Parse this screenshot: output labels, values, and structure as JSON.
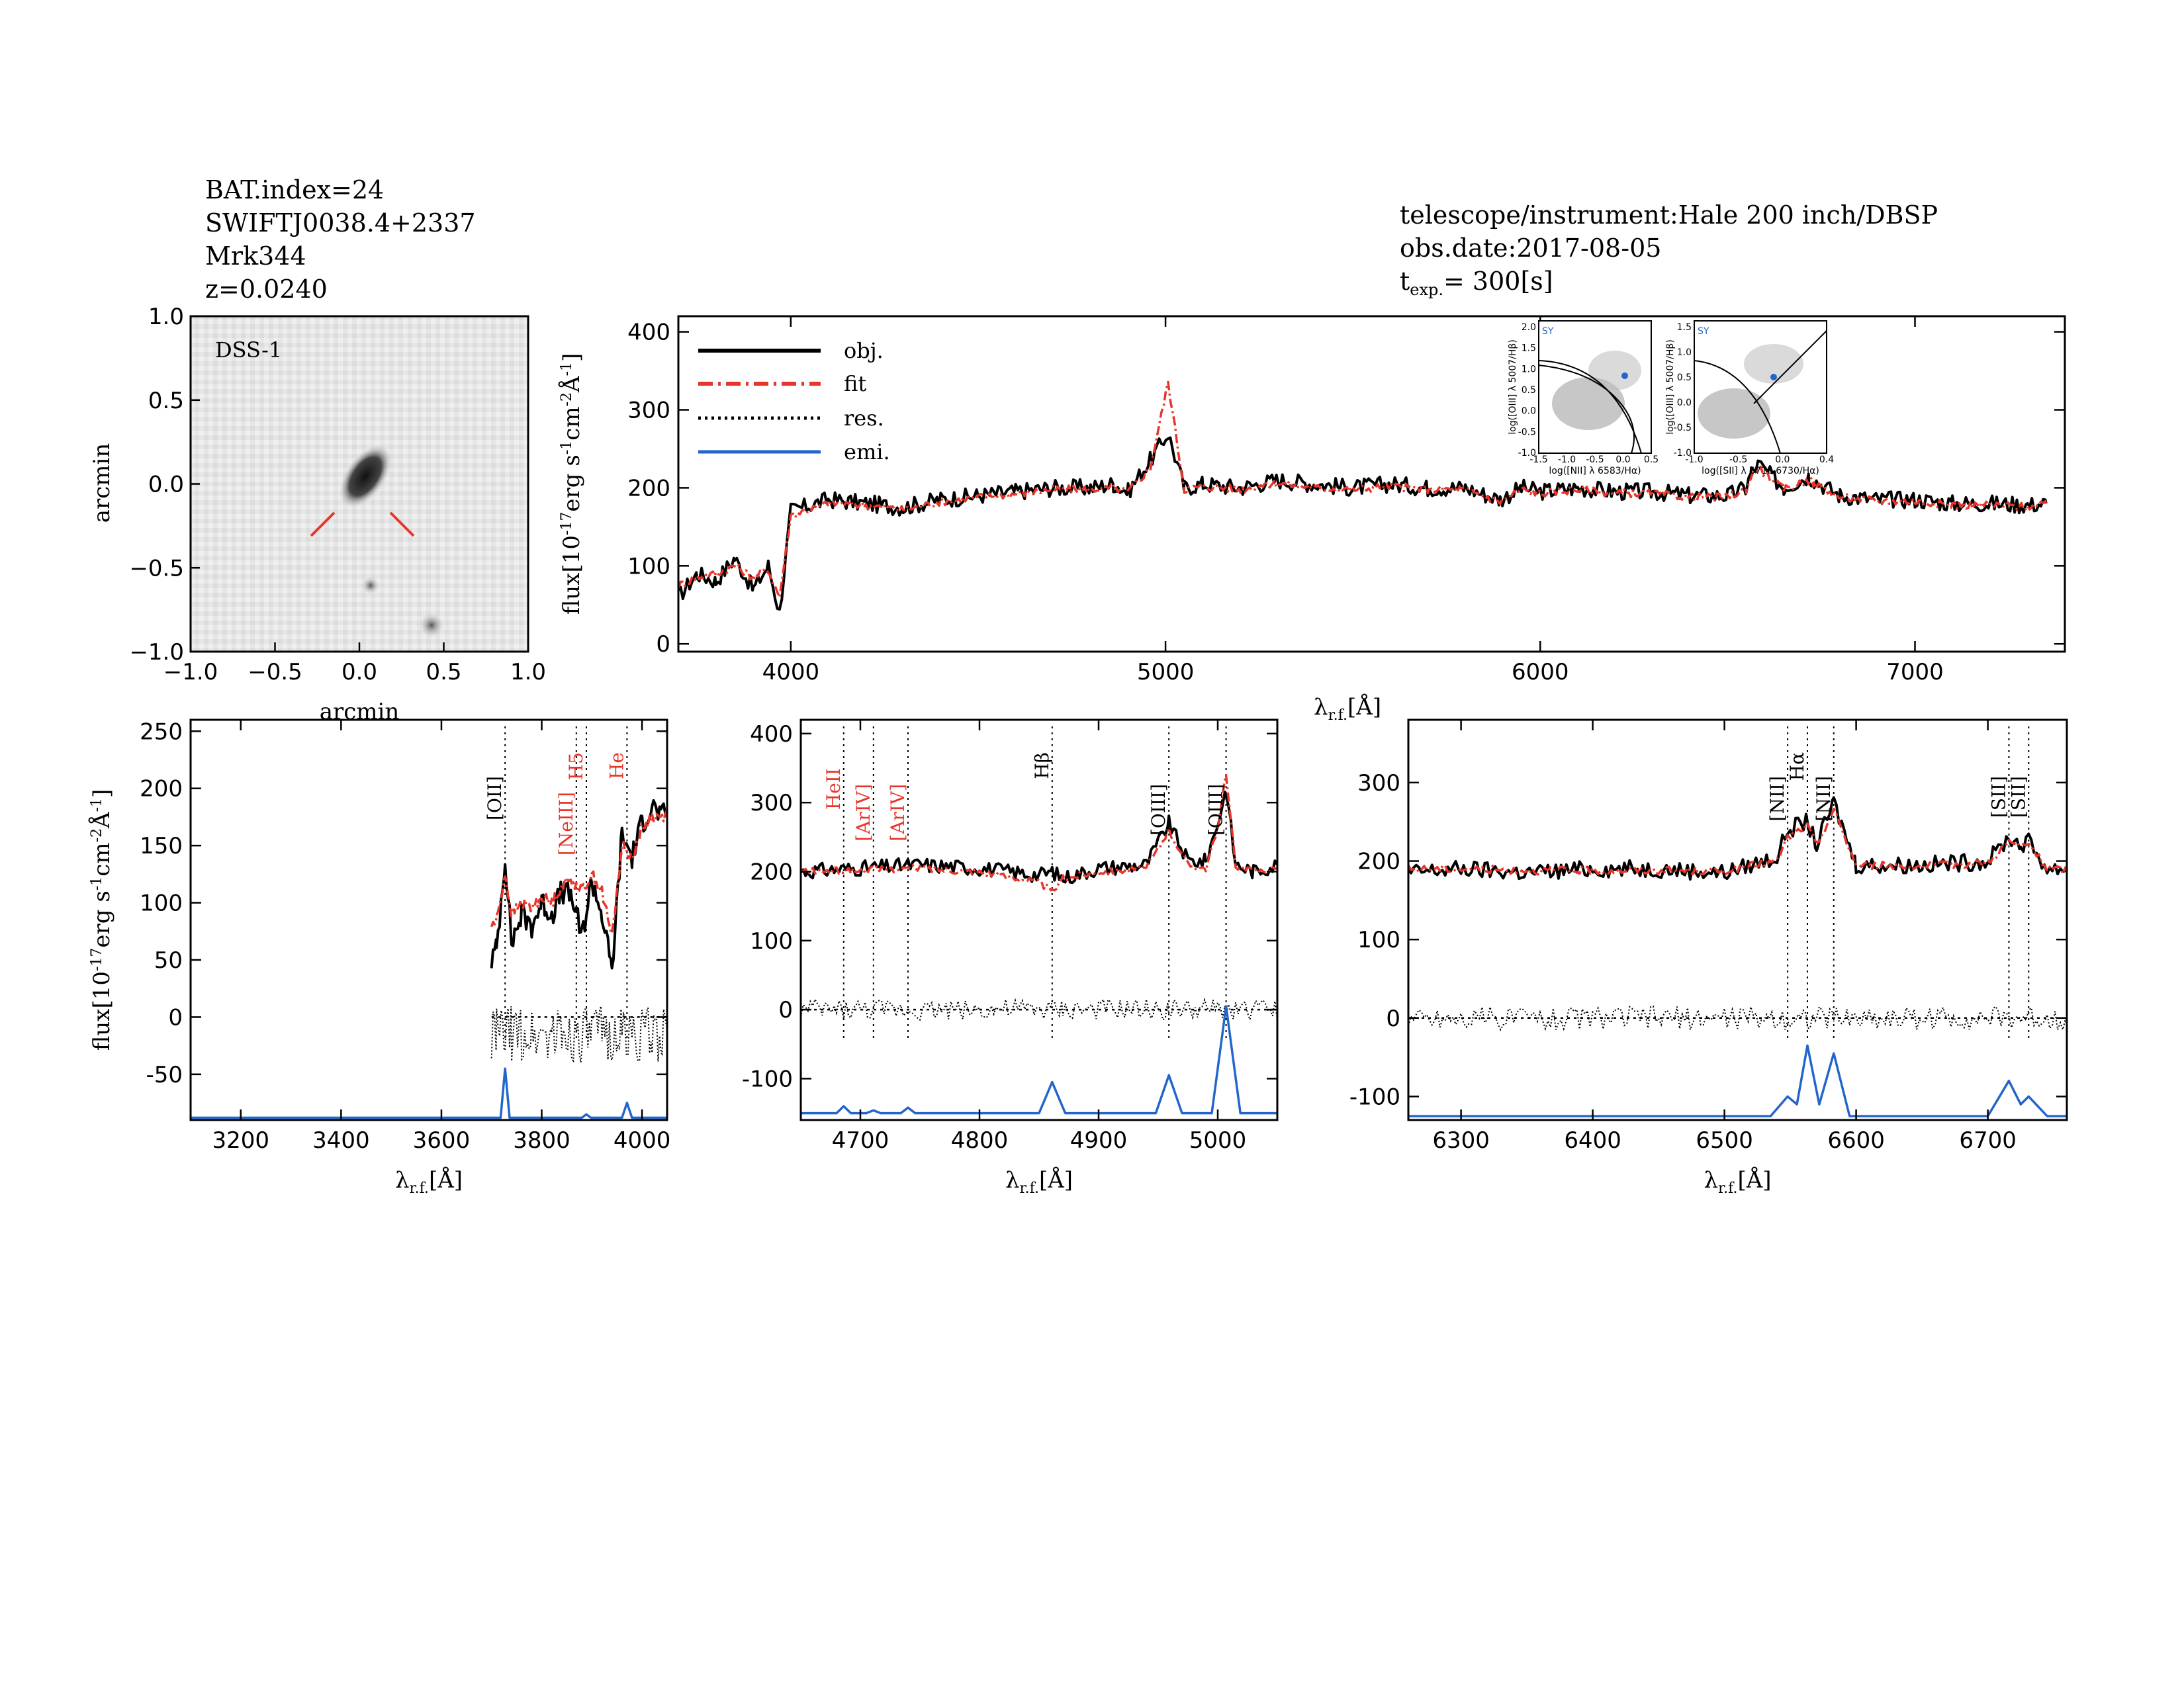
{
  "header_left": [
    "BAT.index=24",
    "SWIFTJ0038.4+2337",
    "Mrk344",
    "z=0.0240"
  ],
  "header_right": {
    "instrument": "telescope/instrument:Hale 200 inch/DBSP",
    "date": "obs.date:2017-08-05",
    "texp_main": "t",
    "texp_sub": "exp.",
    "texp_value": "= 300[s]"
  },
  "image_panel": {
    "label": "DSS-1",
    "xlabel": "arcmin",
    "ylabel": "arcmin",
    "xticks": [
      "-1.0",
      "-0.5",
      "0.0",
      "0.5",
      "1.0"
    ],
    "yticks": [
      "1.0",
      "0.5",
      "0.0",
      "-0.5",
      "-1.0"
    ]
  },
  "axis_text": {
    "flux_label": "flux[10-17erg s-1cm-2Å-1]",
    "lambda_label": "λr.f.[Å]"
  },
  "legend": [
    "obj.",
    "fit",
    "res.",
    "emi."
  ],
  "bpt1": {
    "tag": "SY",
    "xlabel": "log([NII] λ 6583/Hα)",
    "ylabel": "log([OIII] λ 5007/Hβ)",
    "xticks": [
      "-1.5",
      "-1.0",
      "-0.5",
      "0.0",
      "0.5"
    ],
    "yticks": [
      "2.0",
      "1.5",
      "1.0",
      "0.5",
      "0.0",
      "-0.5",
      "-1.0"
    ]
  },
  "bpt2": {
    "tag": "SY",
    "xlabel": "log([SII] λ 6716,6730/Hα)",
    "ylabel": "log([OIII] λ 5007/Hβ)",
    "xticks": [
      "-1.0",
      "-0.5",
      "0.0",
      "0.4"
    ],
    "yticks": [
      "1.5",
      "1.0",
      "0.5",
      "0.0",
      "-0.5",
      "-1.0"
    ]
  },
  "colors": {
    "obj": "#000000",
    "fit": "#e8352a",
    "res": "#000000",
    "emi": "#2266cc",
    "red_label": "#e8352a"
  },
  "chart_data": [
    {
      "type": "line",
      "panel": "full spectrum",
      "xlim": [
        3700,
        7400
      ],
      "ylim": [
        -10,
        420
      ],
      "xticks": [
        4000,
        5000,
        6000,
        7000
      ],
      "yticks": [
        0,
        100,
        200,
        300,
        400
      ],
      "series": [
        {
          "name": "obj.",
          "x": [
            3700,
            3750,
            3800,
            3850,
            3900,
            3940,
            3970,
            4000,
            4100,
            4200,
            4300,
            4400,
            4500,
            4600,
            4700,
            4800,
            4861,
            4900,
            4959,
            5007,
            5050,
            5100,
            5200,
            5300,
            5400,
            5500,
            5600,
            5700,
            5800,
            5893,
            5950,
            6000,
            6100,
            6200,
            6300,
            6400,
            6500,
            6550,
            6563,
            6583,
            6650,
            6717,
            6731,
            6800,
            6900,
            7000,
            7100,
            7200,
            7300,
            7350
          ],
          "y": [
            60,
            90,
            80,
            110,
            70,
            100,
            40,
            170,
            185,
            180,
            175,
            185,
            190,
            195,
            200,
            200,
            205,
            195,
            235,
            270,
            200,
            205,
            200,
            210,
            205,
            200,
            205,
            200,
            200,
            185,
            200,
            195,
            200,
            195,
            195,
            190,
            190,
            200,
            220,
            230,
            200,
            215,
            210,
            190,
            185,
            185,
            180,
            180,
            178,
            180
          ]
        },
        {
          "name": "fit",
          "x": [
            3700,
            3750,
            3800,
            3850,
            3900,
            3940,
            3970,
            4000,
            4100,
            4200,
            4300,
            4400,
            4500,
            4600,
            4700,
            4800,
            4861,
            4900,
            4959,
            5007,
            5050,
            5100,
            5200,
            5300,
            5400,
            5500,
            5600,
            5700,
            5800,
            5893,
            5950,
            6000,
            6100,
            6200,
            6300,
            6400,
            6500,
            6550,
            6563,
            6583,
            6650,
            6717,
            6731,
            6800,
            6900,
            7000,
            7100,
            7200,
            7300,
            7350
          ],
          "y": [
            75,
            85,
            90,
            100,
            85,
            95,
            60,
            165,
            180,
            178,
            172,
            182,
            188,
            192,
            198,
            198,
            200,
            195,
            225,
            335,
            198,
            202,
            198,
            206,
            200,
            198,
            202,
            198,
            198,
            182,
            198,
            193,
            198,
            193,
            193,
            188,
            188,
            198,
            215,
            225,
            198,
            210,
            205,
            188,
            183,
            183,
            178,
            178,
            176,
            178
          ]
        }
      ]
    },
    {
      "type": "line",
      "panel": "OII zoom",
      "xlim": [
        3100,
        4050
      ],
      "ylim": [
        -90,
        260
      ],
      "xticks": [
        3200,
        3400,
        3600,
        3800,
        4000
      ],
      "yticks": [
        -50,
        0,
        50,
        100,
        150,
        200,
        250
      ],
      "lines": [
        {
          "name": "[OII]",
          "x": 3727,
          "color": "black"
        },
        {
          "name": "H5",
          "x": 3889,
          "color": "red"
        },
        {
          "name": "[NeIII]",
          "x": 3869,
          "color": "red"
        },
        {
          "name": "He",
          "x": 3970,
          "color": "red"
        }
      ],
      "series": [
        {
          "name": "obj.",
          "x": [
            3700,
            3710,
            3727,
            3740,
            3760,
            3780,
            3800,
            3820,
            3840,
            3860,
            3880,
            3900,
            3920,
            3940,
            3960,
            3980,
            4000,
            4020,
            4040,
            4050
          ],
          "y": [
            50,
            60,
            140,
            65,
            90,
            80,
            100,
            90,
            110,
            105,
            70,
            120,
            90,
            40,
            160,
            140,
            170,
            185,
            175,
            180
          ]
        },
        {
          "name": "fit",
          "x": [
            3700,
            3710,
            3727,
            3740,
            3760,
            3780,
            3800,
            3820,
            3840,
            3860,
            3880,
            3900,
            3920,
            3940,
            3960,
            3980,
            4000,
            4020,
            4040,
            4050
          ],
          "y": [
            80,
            85,
            125,
            90,
            100,
            95,
            105,
            100,
            115,
            120,
            110,
            125,
            110,
            70,
            150,
            140,
            165,
            175,
            175,
            178
          ]
        },
        {
          "name": "emi.",
          "x": [
            3100,
            3700,
            3718,
            3727,
            3736,
            3880,
            3889,
            3898,
            3960,
            3970,
            3980,
            4050
          ],
          "y": [
            -88,
            -88,
            -88,
            -45,
            -88,
            -88,
            -85,
            -88,
            -88,
            -75,
            -88,
            -88
          ]
        }
      ]
    },
    {
      "type": "line",
      "panel": "Hb-OIII zoom",
      "xlim": [
        4650,
        5050
      ],
      "ylim": [
        -160,
        420
      ],
      "xticks": [
        4700,
        4800,
        4900,
        5000
      ],
      "yticks": [
        -100,
        0,
        100,
        200,
        300,
        400
      ],
      "lines": [
        {
          "name": "HeII",
          "x": 4686,
          "color": "red"
        },
        {
          "name": "[ArIV]",
          "x": 4711,
          "color": "red"
        },
        {
          "name": "[ArIV]",
          "x": 4740,
          "color": "red"
        },
        {
          "name": "Hβ",
          "x": 4861,
          "color": "black"
        },
        {
          "name": "[OIII]",
          "x": 4959,
          "color": "black"
        },
        {
          "name": "[OIII]",
          "x": 5007,
          "color": "black"
        }
      ],
      "series": [
        {
          "name": "obj.",
          "x": [
            4650,
            4700,
            4750,
            4800,
            4850,
            4861,
            4870,
            4900,
            4940,
            4959,
            4975,
            4990,
            5000,
            5007,
            5015,
            5030,
            5050
          ],
          "y": [
            200,
            205,
            210,
            205,
            195,
            200,
            190,
            205,
            210,
            270,
            215,
            215,
            270,
            320,
            210,
            200,
            210
          ]
        },
        {
          "name": "fit",
          "x": [
            4650,
            4700,
            4750,
            4800,
            4850,
            4861,
            4870,
            4900,
            4940,
            4959,
            4975,
            4990,
            5000,
            5007,
            5015,
            5030,
            5050
          ],
          "y": [
            200,
            202,
            205,
            200,
            185,
            170,
            190,
            200,
            205,
            260,
            210,
            205,
            260,
            345,
            205,
            200,
            205
          ]
        },
        {
          "name": "emi.",
          "x": [
            4650,
            4680,
            4686,
            4692,
            4705,
            4711,
            4717,
            4734,
            4740,
            4746,
            4850,
            4861,
            4872,
            4948,
            4959,
            4970,
            4995,
            5007,
            5019,
            5050
          ],
          "y": [
            -150,
            -150,
            -140,
            -150,
            -150,
            -146,
            -150,
            -150,
            -142,
            -150,
            -150,
            -105,
            -150,
            -150,
            -95,
            -150,
            -150,
            5,
            -150,
            -150
          ]
        }
      ]
    },
    {
      "type": "line",
      "panel": "Ha zoom",
      "xlim": [
        6260,
        6760
      ],
      "ylim": [
        -130,
        380
      ],
      "xticks": [
        6300,
        6400,
        6500,
        6600,
        6700
      ],
      "yticks": [
        -100,
        0,
        100,
        200,
        300
      ],
      "lines": [
        {
          "name": "[NII]",
          "x": 6548,
          "color": "black"
        },
        {
          "name": "Hα",
          "x": 6563,
          "color": "black"
        },
        {
          "name": "[NII]",
          "x": 6583,
          "color": "black"
        },
        {
          "name": "[SII]",
          "x": 6716,
          "color": "black"
        },
        {
          "name": "[SII]",
          "x": 6731,
          "color": "black"
        }
      ],
      "series": [
        {
          "name": "obj.",
          "x": [
            6260,
            6300,
            6350,
            6400,
            6450,
            6500,
            6540,
            6548,
            6563,
            6570,
            6583,
            6600,
            6650,
            6700,
            6716,
            6725,
            6731,
            6745,
            6760
          ],
          "y": [
            185,
            190,
            185,
            190,
            190,
            185,
            205,
            240,
            250,
            220,
            275,
            195,
            195,
            200,
            230,
            220,
            225,
            190,
            190
          ]
        },
        {
          "name": "fit",
          "x": [
            6260,
            6300,
            6350,
            6400,
            6450,
            6500,
            6540,
            6548,
            6563,
            6570,
            6583,
            6600,
            6650,
            6700,
            6716,
            6725,
            6731,
            6745,
            6760
          ],
          "y": [
            190,
            190,
            188,
            188,
            188,
            187,
            200,
            230,
            245,
            220,
            265,
            195,
            193,
            198,
            225,
            218,
            222,
            190,
            188
          ]
        },
        {
          "name": "emi.",
          "x": [
            6260,
            6535,
            6548,
            6555,
            6563,
            6572,
            6583,
            6595,
            6700,
            6716,
            6725,
            6731,
            6745,
            6760
          ],
          "y": [
            -125,
            -125,
            -100,
            -110,
            -35,
            -110,
            -45,
            -125,
            -125,
            -80,
            -110,
            -100,
            -125,
            -125
          ]
        }
      ]
    }
  ]
}
